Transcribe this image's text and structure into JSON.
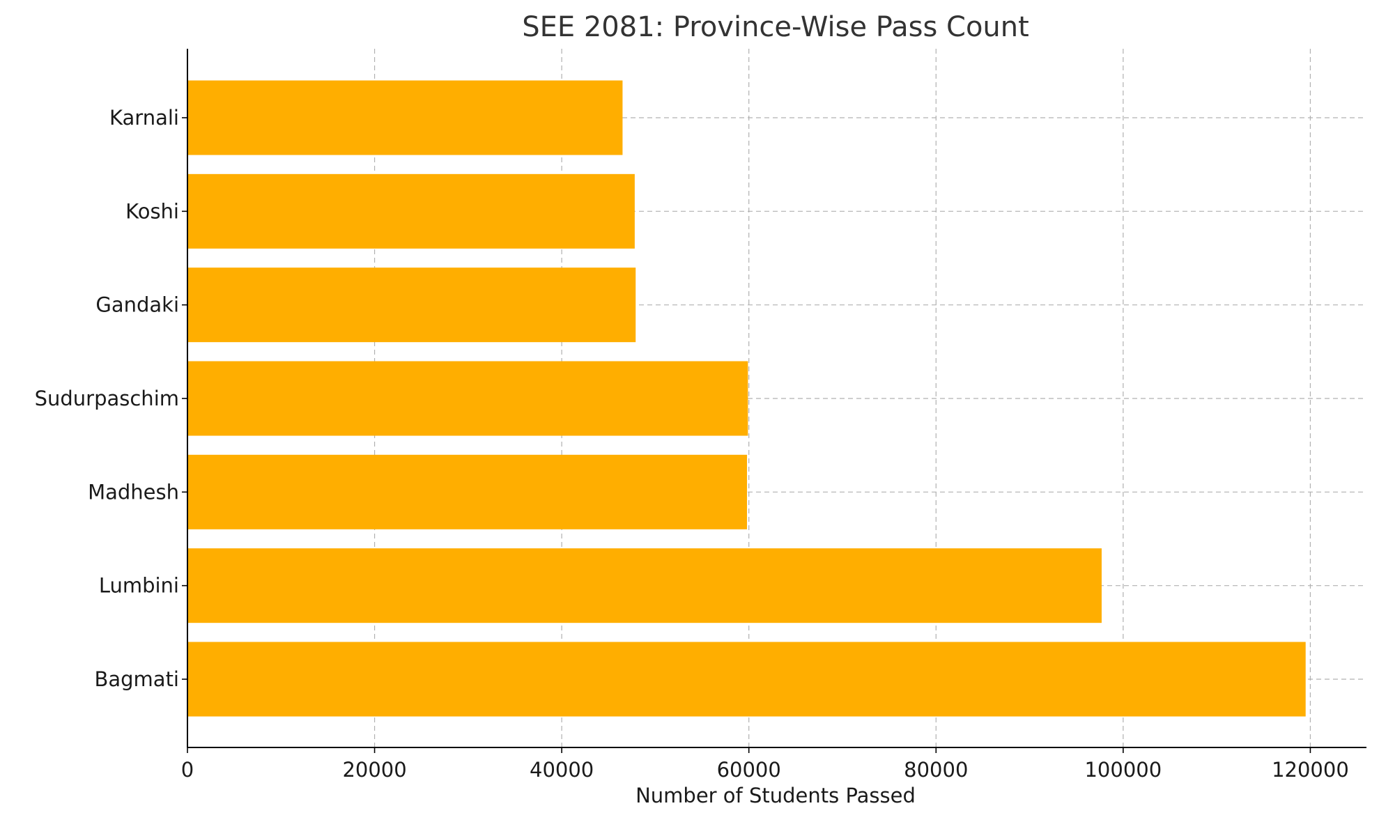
{
  "chart_data": {
    "type": "bar",
    "orientation": "horizontal",
    "title": "SEE 2081: Province-Wise Pass Count",
    "xlabel": "Number of Students Passed",
    "ylabel": "",
    "categories": [
      "Bagmati",
      "Lumbini",
      "Madhesh",
      "Sudurpaschim",
      "Gandaki",
      "Koshi",
      "Karnali"
    ],
    "values": [
      119500,
      97700,
      59800,
      59900,
      47900,
      47800,
      46500
    ],
    "xlim": [
      0,
      126000
    ],
    "xticks": [
      "0",
      "20000",
      "40000",
      "60000",
      "80000",
      "100000",
      "120000"
    ],
    "grid": true,
    "bar_color": "#FFAE00"
  }
}
